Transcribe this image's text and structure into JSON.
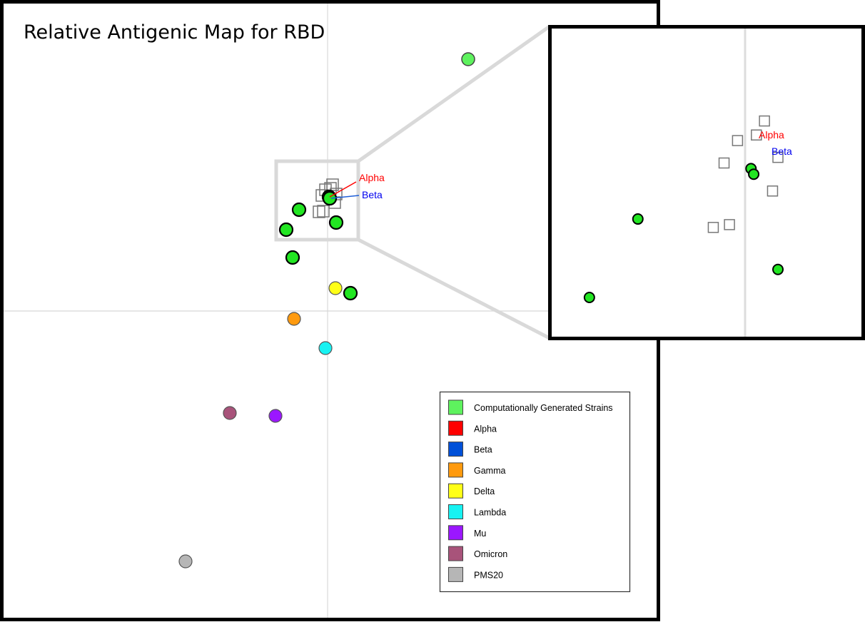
{
  "title": "Relative Antigenic Map for RBD",
  "colors": {
    "computational": "#5ef25e",
    "computational_bright": "#22e622",
    "alpha": "#ff0000",
    "beta": "#0050d8",
    "gamma": "#ff9a0e",
    "delta": "#ffff17",
    "lambda": "#17f2f2",
    "mu": "#9b17ff",
    "omicron": "#a8537a",
    "pms20": "#b6b6b6",
    "frame": "#000000",
    "gridline": "#d8d8d8",
    "zoom": "#d9d9d9"
  },
  "annotations": {
    "alpha_label": "Alpha",
    "beta_label": "Beta"
  },
  "legend": {
    "placement": "bottom-right",
    "items": [
      {
        "label": "Computationally Generated Strains",
        "color_key": "computational"
      },
      {
        "label": "Alpha",
        "color_key": "alpha"
      },
      {
        "label": "Beta",
        "color_key": "beta"
      },
      {
        "label": "Gamma",
        "color_key": "gamma"
      },
      {
        "label": "Delta",
        "color_key": "delta"
      },
      {
        "label": "Lambda",
        "color_key": "lambda"
      },
      {
        "label": "Mu",
        "color_key": "mu"
      },
      {
        "label": "Omicron",
        "color_key": "omicron"
      },
      {
        "label": "PMS20",
        "color_key": "pms20"
      }
    ]
  },
  "chart_data": {
    "type": "scatter",
    "title": "Relative Antigenic Map for RBD",
    "xlabel": "",
    "ylabel": "",
    "units": "relative map units (origin at crosshair)",
    "xlim": [
      -4.6,
      4.6
    ],
    "ylim": [
      -4.4,
      4.4
    ],
    "grid": "origin crosshair only",
    "legend_position": "bottom-right",
    "inset": {
      "description": "zoom of boxed region near Alpha/Beta",
      "xlim": [
        -0.72,
        0.43
      ],
      "ylim": [
        1.0,
        2.1
      ]
    },
    "series": [
      {
        "name": "Computationally Generated Strains",
        "points": [
          [
            1.97,
            3.53
          ],
          [
            -0.4,
            1.42
          ],
          [
            0.12,
            1.24
          ],
          [
            -0.58,
            1.14
          ],
          [
            -0.49,
            0.75
          ],
          [
            0.32,
            0.25
          ],
          [
            0.02,
            1.6
          ],
          [
            0.03,
            1.58
          ]
        ]
      },
      {
        "name": "Alpha",
        "points": [
          [
            0.02,
            1.6
          ]
        ]
      },
      {
        "name": "Beta",
        "points": [
          [
            0.03,
            1.58
          ]
        ]
      },
      {
        "name": "Gamma",
        "points": [
          [
            -0.47,
            -0.11
          ]
        ]
      },
      {
        "name": "Delta",
        "points": [
          [
            0.11,
            0.32
          ]
        ]
      },
      {
        "name": "Lambda",
        "points": [
          [
            -0.03,
            -0.52
          ]
        ]
      },
      {
        "name": "Mu",
        "points": [
          [
            -0.73,
            -1.47
          ]
        ]
      },
      {
        "name": "Omicron",
        "points": [
          [
            -1.37,
            -1.43
          ]
        ]
      },
      {
        "name": "PMS20",
        "points": [
          [
            -1.99,
            -3.51
          ],
          [
            0.07,
            1.77
          ],
          [
            -0.03,
            1.7
          ],
          [
            0.12,
            1.64
          ],
          [
            0.1,
            1.52
          ],
          [
            -0.12,
            1.39
          ],
          [
            -0.06,
            1.4
          ],
          [
            -0.08,
            1.62
          ],
          [
            0.04,
            1.72
          ]
        ]
      }
    ]
  }
}
